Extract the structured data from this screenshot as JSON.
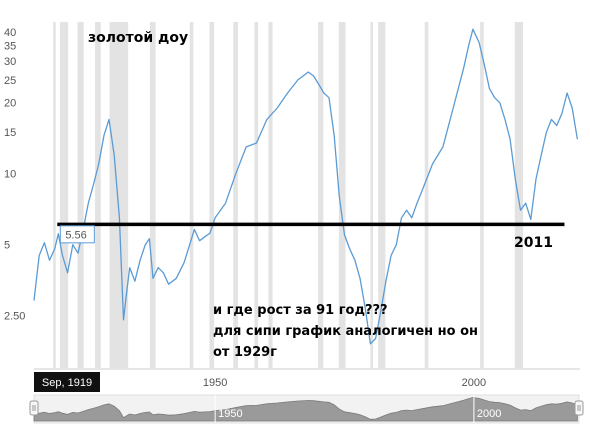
{
  "chart_data": {
    "type": "line",
    "title": "золотой доу",
    "y_scale": "log",
    "ylim": [
      1.5,
      44
    ],
    "xlim": [
      1915,
      2020.5
    ],
    "y_ticks": [
      {
        "value": 40,
        "label": "40"
      },
      {
        "value": 35,
        "label": "35"
      },
      {
        "value": 30,
        "label": "30"
      },
      {
        "value": 25,
        "label": "25"
      },
      {
        "value": 20,
        "label": "20"
      },
      {
        "value": 15,
        "label": "15"
      },
      {
        "value": 10,
        "label": "10"
      },
      {
        "value": 5,
        "label": "5"
      },
      {
        "value": 2.5,
        "label": "2.50"
      }
    ],
    "x_ticks": [
      {
        "value": 1950,
        "label": "1950"
      },
      {
        "value": 2000,
        "label": "2000"
      }
    ],
    "recession_bands": [
      [
        1918.7,
        1919.2
      ],
      [
        1920.0,
        1921.6
      ],
      [
        1923.4,
        1924.6
      ],
      [
        1926.8,
        1927.9
      ],
      [
        1929.6,
        1933.2
      ],
      [
        1937.4,
        1938.5
      ],
      [
        1945.1,
        1945.8
      ],
      [
        1948.9,
        1949.8
      ],
      [
        1953.5,
        1954.4
      ],
      [
        1957.6,
        1958.3
      ],
      [
        1960.3,
        1961.1
      ],
      [
        1969.9,
        1970.9
      ],
      [
        1973.9,
        1975.2
      ],
      [
        1980.0,
        1980.5
      ],
      [
        1981.5,
        1982.9
      ],
      [
        1990.5,
        1991.2
      ],
      [
        2001.2,
        2001.9
      ],
      [
        2007.9,
        2009.5
      ]
    ],
    "series": [
      {
        "color": "#5b9bd5",
        "x": [
          1915.0,
          1916.0,
          1917.0,
          1918.0,
          1919.0,
          1919.7,
          1920.5,
          1921.5,
          1922.5,
          1923.5,
          1924.5,
          1925.5,
          1926.5,
          1927.5,
          1928.5,
          1929.5,
          1930.5,
          1931.5,
          1932.3,
          1932.8,
          1933.5,
          1934.5,
          1935.5,
          1936.5,
          1937.3,
          1938.0,
          1939.0,
          1940.0,
          1941.0,
          1942.5,
          1944.0,
          1946.0,
          1947.0,
          1948.0,
          1949.0,
          1950.0,
          1952.0,
          1954.0,
          1956.0,
          1958.0,
          1960.0,
          1962.0,
          1964.0,
          1966.0,
          1968.0,
          1969.0,
          1970.0,
          1971.0,
          1972.0,
          1973.0,
          1974.0,
          1975.0,
          1976.0,
          1977.0,
          1978.0,
          1979.0,
          1980.0,
          1981.0,
          1982.0,
          1983.0,
          1984.0,
          1985.0,
          1986.0,
          1987.0,
          1988.0,
          1989.0,
          1990.0,
          1992.0,
          1994.0,
          1996.0,
          1998.0,
          1999.0,
          1999.8,
          2001.0,
          2002.0,
          2003.0,
          2004.0,
          2005.0,
          2006.0,
          2007.0,
          2008.0,
          2009.0,
          2010.0,
          2011.0,
          2012.0,
          2013.0,
          2014.0,
          2015.0,
          2016.0,
          2017.0,
          2018.0,
          2019.0,
          2020.0
        ],
        "y": [
          2.9,
          4.5,
          5.1,
          4.3,
          4.8,
          5.56,
          4.5,
          3.8,
          5.0,
          4.6,
          5.8,
          7.5,
          9.0,
          11.0,
          14.5,
          17.0,
          12.0,
          6.5,
          2.4,
          3.0,
          4.0,
          3.5,
          4.3,
          5.0,
          5.3,
          3.6,
          4.0,
          3.8,
          3.4,
          3.6,
          4.2,
          5.8,
          5.2,
          5.4,
          5.6,
          6.5,
          7.5,
          10.0,
          13.0,
          13.5,
          17.0,
          19.0,
          22.0,
          25.0,
          27.0,
          26.0,
          24.0,
          22.0,
          21.0,
          14.5,
          8.0,
          5.5,
          4.8,
          4.3,
          3.6,
          2.7,
          1.9,
          2.0,
          2.6,
          3.5,
          4.5,
          5.0,
          6.5,
          7.0,
          6.5,
          7.5,
          8.5,
          11.0,
          13.0,
          19.0,
          28.0,
          35.0,
          41.0,
          36.0,
          29.0,
          23.0,
          21.0,
          20.0,
          17.0,
          14.0,
          9.5,
          7.0,
          7.5,
          6.4,
          9.5,
          12.0,
          15.0,
          17.0,
          16.0,
          18.0,
          22.0,
          19.0,
          14.0
        ]
      }
    ],
    "reference_line": {
      "value": 6.1,
      "x_start": 1919.5,
      "x_end": 2017.5,
      "color": "#000000"
    },
    "tooltip": {
      "x": 1919.7,
      "y": 5.56,
      "label": "5.56"
    },
    "cursor_label": {
      "x": 1919.7,
      "label": "Sep, 1919"
    },
    "annotations": [
      {
        "id": "year-2011",
        "text": "2011"
      },
      {
        "id": "line-1",
        "text": "и где рост за 91 год???"
      },
      {
        "id": "line-2",
        "text": "для сипи график аналогичен но он"
      },
      {
        "id": "line-3",
        "text": "от 1929г"
      }
    ],
    "navigator": {
      "x_ticks": [
        {
          "value": 1950,
          "label": "1950"
        },
        {
          "value": 2000,
          "label": "2000"
        }
      ]
    }
  }
}
